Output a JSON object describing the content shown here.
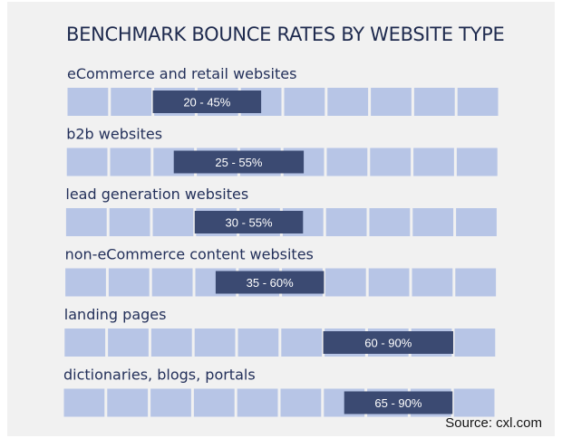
{
  "chart_data": {
    "type": "bar",
    "title": "BENCHMARK BOUNCE RATES BY WEBSITE TYPE",
    "unit": "%",
    "xlim": [
      0,
      100
    ],
    "grid_step": 10,
    "colors": {
      "cell": "#b7c5e6",
      "bar": "#3b4a72",
      "label": "#23305a",
      "bar_text": "#ffffff"
    },
    "rows": [
      {
        "category": "eCommerce and retail websites",
        "low": 20,
        "high": 45,
        "label": "20 - 45%"
      },
      {
        "category": "b2b websites",
        "low": 25,
        "high": 55,
        "label": "25 - 55%"
      },
      {
        "category": "lead generation websites",
        "low": 30,
        "high": 55,
        "label": "30 - 55%"
      },
      {
        "category": "non-eCommerce content websites",
        "low": 35,
        "high": 60,
        "label": "35 - 60%"
      },
      {
        "category": "landing pages",
        "low": 60,
        "high": 90,
        "label": "60 - 90%"
      },
      {
        "category": "dictionaries, blogs, portals",
        "low": 65,
        "high": 90,
        "label": "65 - 90%"
      }
    ]
  },
  "source": "Source: cxl.com"
}
